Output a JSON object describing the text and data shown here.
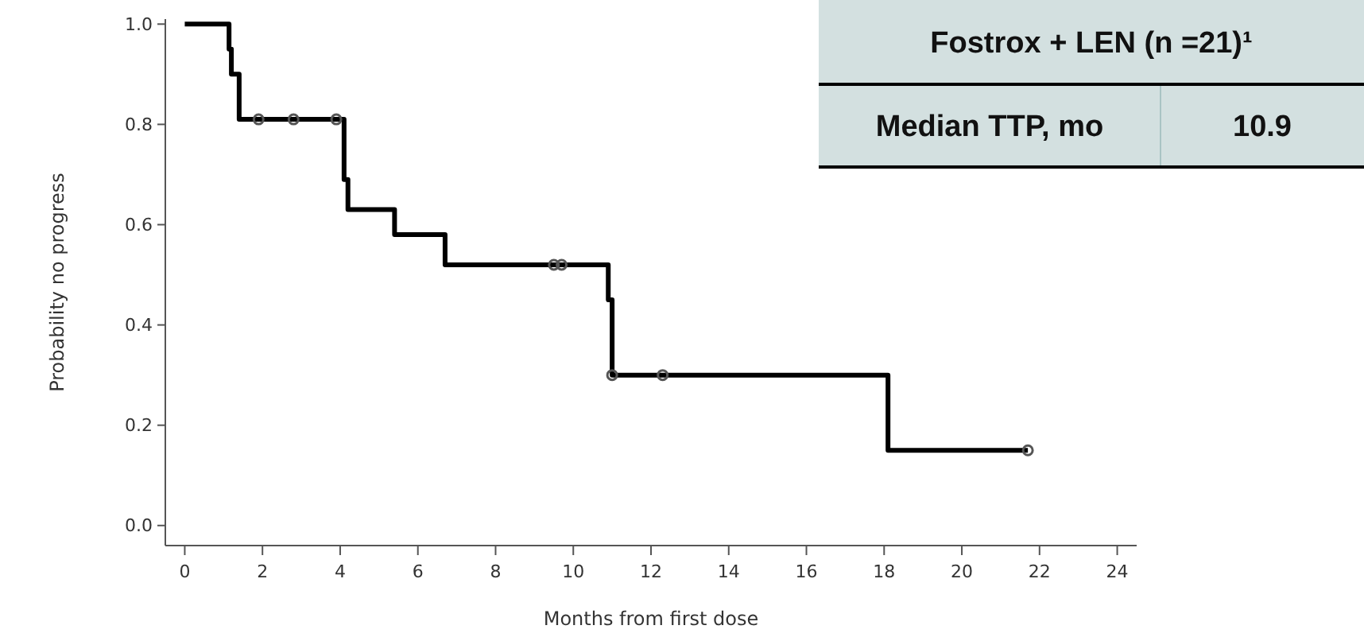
{
  "chart_data": {
    "type": "step",
    "xlabel": "Months from first dose",
    "ylabel": "Probability no progress",
    "xlim": [
      -0.5,
      24.5
    ],
    "xticks": [
      0,
      2,
      4,
      6,
      8,
      10,
      12,
      14,
      16,
      18,
      20,
      22,
      24
    ],
    "ylim": [
      -0.04,
      1.01
    ],
    "yticks": [
      {
        "value": 0,
        "label": "0.0"
      },
      {
        "value": 0.2,
        "label": "0.2"
      },
      {
        "value": 0.4,
        "label": "0.4"
      },
      {
        "value": 0.6,
        "label": "0.6"
      },
      {
        "value": 0.8,
        "label": "0.8"
      },
      {
        "value": 1,
        "label": "1.0"
      }
    ],
    "grid": false,
    "series": [
      {
        "color": "#000000",
        "marker": "none",
        "x": [
          0,
          1.14,
          1.2,
          1.4,
          4.1,
          4.2,
          5.4,
          6.7,
          10.9,
          11.0,
          18.1,
          21.7
        ],
        "values": [
          1,
          0.95,
          0.9,
          0.81,
          0.69,
          0.63,
          0.58,
          0.52,
          0.45,
          0.3,
          0.15,
          0.15
        ]
      },
      {
        "type": "scatter",
        "color": "#555555",
        "marker": "circle",
        "x": [
          1.9,
          2.8,
          3.9,
          9.5,
          9.7,
          11.0,
          12.3,
          21.7
        ],
        "values": [
          0.81,
          0.81,
          0.81,
          0.52,
          0.52,
          0.3,
          0.3,
          0.15
        ]
      }
    ],
    "annotations": [
      "Fostrox + LEN (n =21)¹",
      "Median TTP, mo",
      "10.9"
    ]
  }
}
